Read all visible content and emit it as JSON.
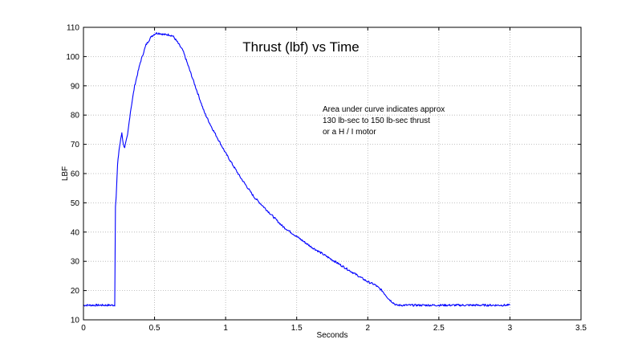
{
  "chart_data": {
    "type": "line",
    "title": "Thrust (lbf) vs Time",
    "xlabel": "Seconds",
    "ylabel": "LBF",
    "xlim": [
      0,
      3.5
    ],
    "ylim": [
      10,
      110
    ],
    "xticks": [
      0,
      0.5,
      1,
      1.5,
      2,
      2.5,
      3,
      3.5
    ],
    "xtick_labels": [
      "0",
      "0.5",
      "1",
      "1.5",
      "2",
      "2.5",
      "3",
      "3.5"
    ],
    "yticks": [
      10,
      20,
      30,
      40,
      50,
      60,
      70,
      80,
      90,
      100,
      110
    ],
    "ytick_labels": [
      "10",
      "20",
      "30",
      "40",
      "50",
      "60",
      "70",
      "80",
      "90",
      "100",
      "110"
    ],
    "grid": true,
    "line_color": "#0000ff",
    "annotation": [
      "Area under curve indicates approx",
      "130 lb-sec to 150 lb-sec thrust",
      "or a H / I motor"
    ],
    "series": [
      {
        "x": [
          0,
          0.1,
          0.2,
          0.22,
          0.225,
          0.23,
          0.24,
          0.25,
          0.27,
          0.28,
          0.29,
          0.31,
          0.33,
          0.36,
          0.4,
          0.44,
          0.48,
          0.51,
          0.53,
          0.57,
          0.6,
          0.63,
          0.66,
          0.7,
          0.75,
          0.8,
          0.85,
          0.9,
          1.0,
          1.1,
          1.2,
          1.3,
          1.4,
          1.5,
          1.6,
          1.7,
          1.8,
          1.9,
          2.0,
          2.05,
          2.1,
          2.15,
          2.2,
          2.25,
          2.3,
          2.5,
          2.7,
          2.9,
          3.0
        ],
        "y": [
          15,
          15,
          15,
          15,
          49,
          52,
          63,
          68,
          74,
          70,
          69,
          73,
          81,
          90,
          98,
          104,
          107,
          108,
          108,
          107.5,
          107.5,
          107,
          105,
          102,
          95,
          88,
          81,
          76,
          67,
          59,
          52,
          47,
          42,
          38.5,
          35,
          32,
          29,
          26,
          23,
          22,
          20,
          17,
          15,
          15,
          15,
          15,
          15,
          15,
          15
        ]
      }
    ]
  }
}
